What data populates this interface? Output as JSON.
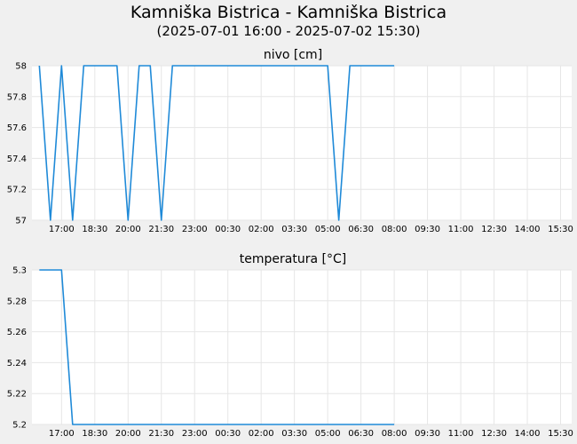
{
  "header": {
    "title": "Kamniška Bistrica - Kamniška Bistrica",
    "subtitle": "(2025-07-01 16:00 - 2025-07-02 15:30)"
  },
  "colors": {
    "line": "#1f8ad8",
    "grid": "#e6e6e6",
    "plot_bg": "#ffffff",
    "page_bg": "#f0f0f0"
  },
  "chart_data": [
    {
      "type": "line",
      "title": "nivo [cm]",
      "xlabel": "",
      "ylabel": "",
      "x_unit": "time",
      "xlim": [
        "2025-07-01 16:00",
        "2025-07-02 15:30"
      ],
      "ylim": [
        57,
        58
      ],
      "yticks": [
        "58",
        "57.8",
        "57.6",
        "57.4",
        "57.2",
        "57"
      ],
      "xticks": [
        "17:00",
        "18:30",
        "20:00",
        "21:30",
        "23:00",
        "00:30",
        "02:00",
        "03:30",
        "05:00",
        "06:30",
        "08:00",
        "09:30",
        "11:00",
        "12:30",
        "14:00",
        "15:30"
      ],
      "grid": true,
      "series": [
        {
          "points": [
            [
              "2025-07-01 16:00",
              58
            ],
            [
              "2025-07-01 16:30",
              57
            ],
            [
              "2025-07-01 17:00",
              58
            ],
            [
              "2025-07-01 17:30",
              57
            ],
            [
              "2025-07-01 18:00",
              58
            ],
            [
              "2025-07-01 19:30",
              58
            ],
            [
              "2025-07-01 20:00",
              57
            ],
            [
              "2025-07-01 20:30",
              58
            ],
            [
              "2025-07-01 21:00",
              58
            ],
            [
              "2025-07-01 21:30",
              57
            ],
            [
              "2025-07-01 22:00",
              58
            ],
            [
              "2025-07-02 05:00",
              58
            ],
            [
              "2025-07-02 05:30",
              57
            ],
            [
              "2025-07-02 06:00",
              58
            ],
            [
              "2025-07-02 08:00",
              58
            ]
          ]
        }
      ]
    },
    {
      "type": "line",
      "title": "temperatura [°C]",
      "xlabel": "",
      "ylabel": "",
      "x_unit": "time",
      "xlim": [
        "2025-07-01 16:00",
        "2025-07-02 15:30"
      ],
      "ylim": [
        5.2,
        5.3
      ],
      "yticks": [
        "5.3",
        "5.28",
        "5.26",
        "5.24",
        "5.22",
        "5.2"
      ],
      "xticks": [
        "17:00",
        "18:30",
        "20:00",
        "21:30",
        "23:00",
        "00:30",
        "02:00",
        "03:30",
        "05:00",
        "06:30",
        "08:00",
        "09:30",
        "11:00",
        "12:30",
        "14:00",
        "15:30"
      ],
      "grid": true,
      "series": [
        {
          "points": [
            [
              "2025-07-01 16:00",
              5.3
            ],
            [
              "2025-07-01 17:00",
              5.3
            ],
            [
              "2025-07-01 17:30",
              5.2
            ],
            [
              "2025-07-02 08:00",
              5.2
            ]
          ]
        }
      ]
    }
  ]
}
